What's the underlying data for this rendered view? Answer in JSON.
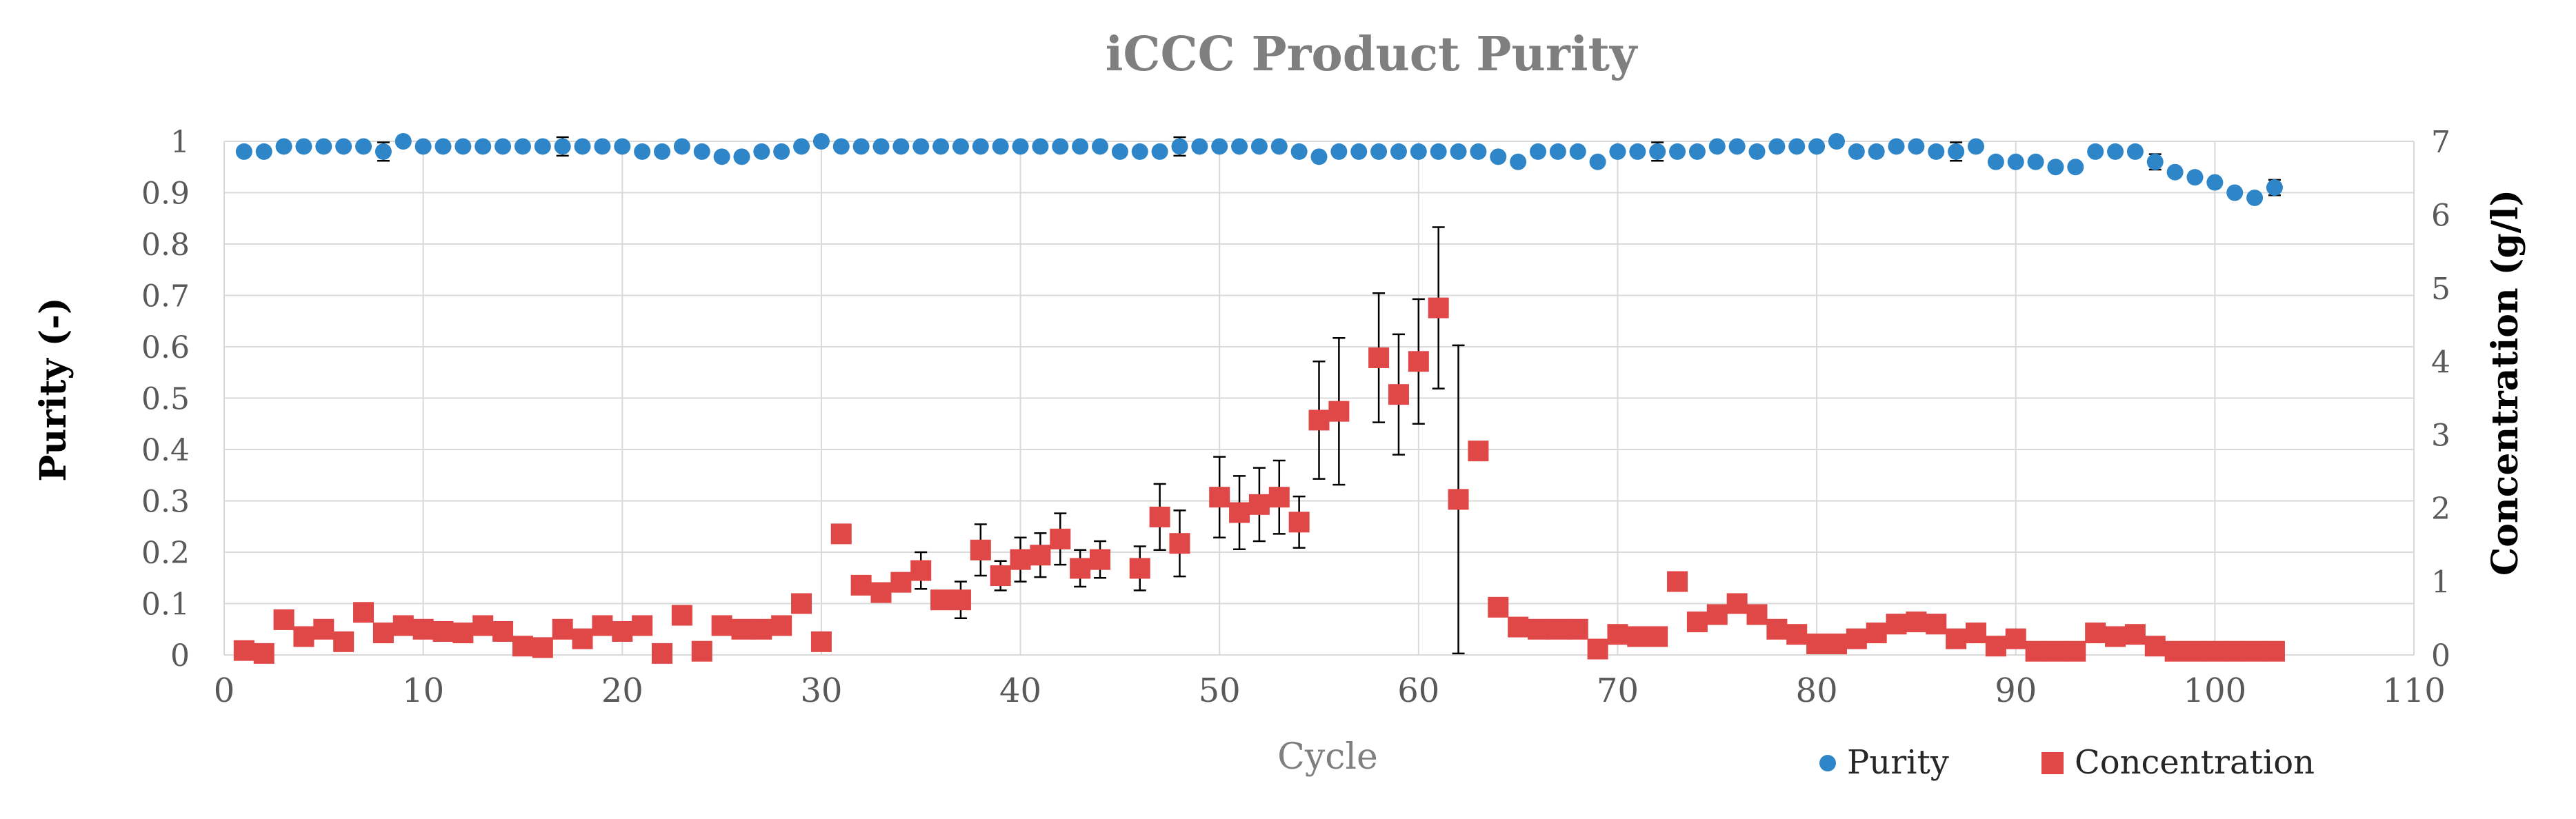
{
  "chart_data": {
    "type": "scatter",
    "title": "iCCC Product Purity",
    "xlabel": "Cycle",
    "ylabel_left": "Purity (-)",
    "ylabel_right": "Concentration (g/l)",
    "xlim": [
      0,
      110
    ],
    "ylim_left": [
      0,
      1
    ],
    "ylim_right": [
      0,
      7
    ],
    "x_ticks": [
      "0",
      "10",
      "20",
      "30",
      "40",
      "50",
      "60",
      "70",
      "80",
      "90",
      "100",
      "110"
    ],
    "y_left_ticks": [
      "0",
      "0.1",
      "0.2",
      "0.3",
      "0.4",
      "0.5",
      "0.6",
      "0.7",
      "0.8",
      "0.9",
      "1"
    ],
    "y_right_ticks": [
      "0",
      "1",
      "2",
      "3",
      "4",
      "5",
      "6",
      "7"
    ],
    "grid": true,
    "legend_position": "bottom-right",
    "legend": [
      "Purity",
      "Concentration"
    ],
    "colors": {
      "purity": "#2e86c8",
      "concentration": "#e04848",
      "grid": "#d9d9d9",
      "error_bar": "#000000"
    },
    "series": [
      {
        "name": "Purity",
        "axis": "left",
        "marker": "circle",
        "x": [
          1,
          2,
          3,
          4,
          5,
          6,
          7,
          8,
          9,
          10,
          11,
          12,
          13,
          14,
          15,
          16,
          17,
          18,
          19,
          20,
          21,
          22,
          23,
          24,
          25,
          26,
          27,
          28,
          29,
          30,
          31,
          32,
          33,
          34,
          35,
          36,
          37,
          38,
          39,
          40,
          41,
          42,
          43,
          44,
          45,
          46,
          47,
          48,
          49,
          50,
          51,
          52,
          53,
          54,
          55,
          56,
          57,
          58,
          59,
          60,
          61,
          62,
          63,
          64,
          65,
          66,
          67,
          68,
          69,
          70,
          71,
          72,
          73,
          74,
          75,
          76,
          77,
          78,
          79,
          80,
          81,
          82,
          83,
          84,
          85,
          86,
          87,
          88,
          89,
          90,
          91,
          92,
          93,
          94,
          95,
          96,
          97,
          98,
          99,
          100,
          101,
          102,
          103
        ],
        "values": [
          0.98,
          0.98,
          0.99,
          0.99,
          0.99,
          0.99,
          0.99,
          0.98,
          1.0,
          0.99,
          0.99,
          0.99,
          0.99,
          0.99,
          0.99,
          0.99,
          0.99,
          0.99,
          0.99,
          0.99,
          0.98,
          0.98,
          0.99,
          0.98,
          0.97,
          0.97,
          0.98,
          0.98,
          0.99,
          1.0,
          0.99,
          0.99,
          0.99,
          0.99,
          0.99,
          0.99,
          0.99,
          0.99,
          0.99,
          0.99,
          0.99,
          0.99,
          0.99,
          0.99,
          0.98,
          0.98,
          0.98,
          0.99,
          0.99,
          0.99,
          0.99,
          0.99,
          0.99,
          0.98,
          0.97,
          0.98,
          0.98,
          0.98,
          0.98,
          0.98,
          0.98,
          0.98,
          0.98,
          0.97,
          0.96,
          0.98,
          0.98,
          0.98,
          0.96,
          0.98,
          0.98,
          0.98,
          0.98,
          0.98,
          0.99,
          0.99,
          0.98,
          0.99,
          0.99,
          0.99,
          1.0,
          0.98,
          0.98,
          0.99,
          0.99,
          0.98,
          0.98,
          0.99,
          0.96,
          0.96,
          0.96,
          0.95,
          0.95,
          0.98,
          0.98,
          0.98,
          0.96,
          0.94,
          0.93,
          0.92,
          0.9,
          0.89,
          0.91
        ],
        "errors": [
          0.008,
          0.008,
          0.008,
          0.005,
          0.005,
          0.005,
          0.005,
          0.018,
          0.005,
          0.005,
          0.008,
          0.008,
          0.005,
          0.005,
          0.005,
          0.005,
          0.018,
          0.005,
          0.008,
          0.008,
          0.008,
          0.005,
          0.005,
          0.005,
          0.008,
          0.008,
          0.008,
          0.008,
          0.005,
          0.005,
          0.005,
          0.005,
          0.005,
          0.005,
          0.005,
          0.005,
          0.005,
          0.005,
          0.005,
          0.005,
          0.005,
          0.005,
          0.005,
          0.008,
          0.008,
          0.008,
          0.008,
          0.018,
          0.008,
          0.008,
          0.008,
          0.008,
          0.008,
          0.008,
          0.008,
          0.008,
          0.008,
          0.008,
          0.008,
          0.008,
          0.008,
          0.008,
          0.008,
          0.008,
          0.008,
          0.008,
          0.008,
          0.008,
          0.008,
          0.008,
          0.008,
          0.018,
          0.008,
          0.008,
          0.008,
          0.008,
          0.008,
          0.008,
          0.008,
          0.008,
          0.008,
          0.008,
          0.008,
          0.008,
          0.008,
          0.008,
          0.018,
          0.008,
          0.008,
          0.008,
          0.008,
          0.008,
          0.008,
          0.008,
          0.008,
          0.008,
          0.015,
          0.008,
          0.008,
          0.008,
          0.008,
          0.008,
          0.015
        ]
      },
      {
        "name": "Concentration",
        "axis": "right",
        "marker": "square",
        "x": [
          1,
          2,
          3,
          4,
          5,
          6,
          7,
          8,
          9,
          10,
          11,
          12,
          13,
          14,
          15,
          16,
          17,
          18,
          19,
          20,
          21,
          22,
          23,
          24,
          25,
          26,
          27,
          28,
          29,
          30,
          31,
          32,
          33,
          34,
          35,
          36,
          37,
          38,
          39,
          40,
          41,
          42,
          43,
          44,
          46,
          47,
          48,
          50,
          51,
          52,
          53,
          54,
          55,
          56,
          58,
          59,
          60,
          61,
          62,
          63,
          64,
          65,
          66,
          67,
          68,
          69,
          70,
          71,
          72,
          73,
          74,
          75,
          76,
          77,
          78,
          79,
          80,
          81,
          82,
          83,
          84,
          85,
          86,
          87,
          88,
          89,
          90,
          91,
          92,
          93,
          94,
          95,
          96,
          97,
          98,
          99,
          100,
          101,
          102,
          103
        ],
        "values": [
          0.06,
          0.02,
          0.48,
          0.25,
          0.35,
          0.18,
          0.58,
          0.3,
          0.4,
          0.35,
          0.32,
          0.3,
          0.4,
          0.32,
          0.12,
          0.1,
          0.35,
          0.22,
          0.4,
          0.32,
          0.4,
          0.02,
          0.54,
          0.05,
          0.4,
          0.35,
          0.35,
          0.4,
          0.7,
          0.18,
          1.65,
          0.95,
          0.85,
          0.99,
          1.15,
          0.75,
          0.75,
          1.43,
          1.08,
          1.3,
          1.36,
          1.58,
          1.18,
          1.3,
          1.18,
          1.88,
          1.52,
          2.15,
          1.94,
          2.05,
          2.15,
          1.81,
          3.2,
          3.32,
          4.05,
          3.55,
          4.0,
          4.73,
          2.12,
          2.78,
          0.65,
          0.38,
          0.35,
          0.35,
          0.35,
          0.08,
          0.28,
          0.25,
          0.25,
          1.0,
          0.45,
          0.55,
          0.7,
          0.55,
          0.35,
          0.28,
          0.15,
          0.15,
          0.22,
          0.3,
          0.42,
          0.45,
          0.42,
          0.22,
          0.3,
          0.12,
          0.22,
          0.05,
          0.05,
          0.05,
          0.3,
          0.25,
          0.28,
          0.12,
          0.05,
          0.05,
          0.05,
          0.05,
          0.05,
          0.05
        ],
        "errors": [
          0,
          0,
          0,
          0,
          0,
          0,
          0,
          0,
          0,
          0,
          0,
          0,
          0,
          0,
          0,
          0,
          0,
          0,
          0,
          0,
          0,
          0,
          0,
          0,
          0,
          0,
          0,
          0,
          0,
          0,
          0,
          0,
          0,
          0,
          0.25,
          0.1,
          0.25,
          0.35,
          0.2,
          0.3,
          0.3,
          0.35,
          0.25,
          0.25,
          0.3,
          0.45,
          0.45,
          0.55,
          0.5,
          0.5,
          0.5,
          0.35,
          0.8,
          1.0,
          0.88,
          0.82,
          0.85,
          1.1,
          2.1,
          0,
          0,
          0,
          0,
          0,
          0,
          0,
          0,
          0,
          0,
          0,
          0,
          0,
          0,
          0,
          0,
          0,
          0,
          0,
          0,
          0,
          0,
          0,
          0,
          0,
          0,
          0,
          0,
          0,
          0,
          0,
          0,
          0,
          0,
          0,
          0,
          0,
          0,
          0,
          0,
          0
        ]
      }
    ]
  }
}
